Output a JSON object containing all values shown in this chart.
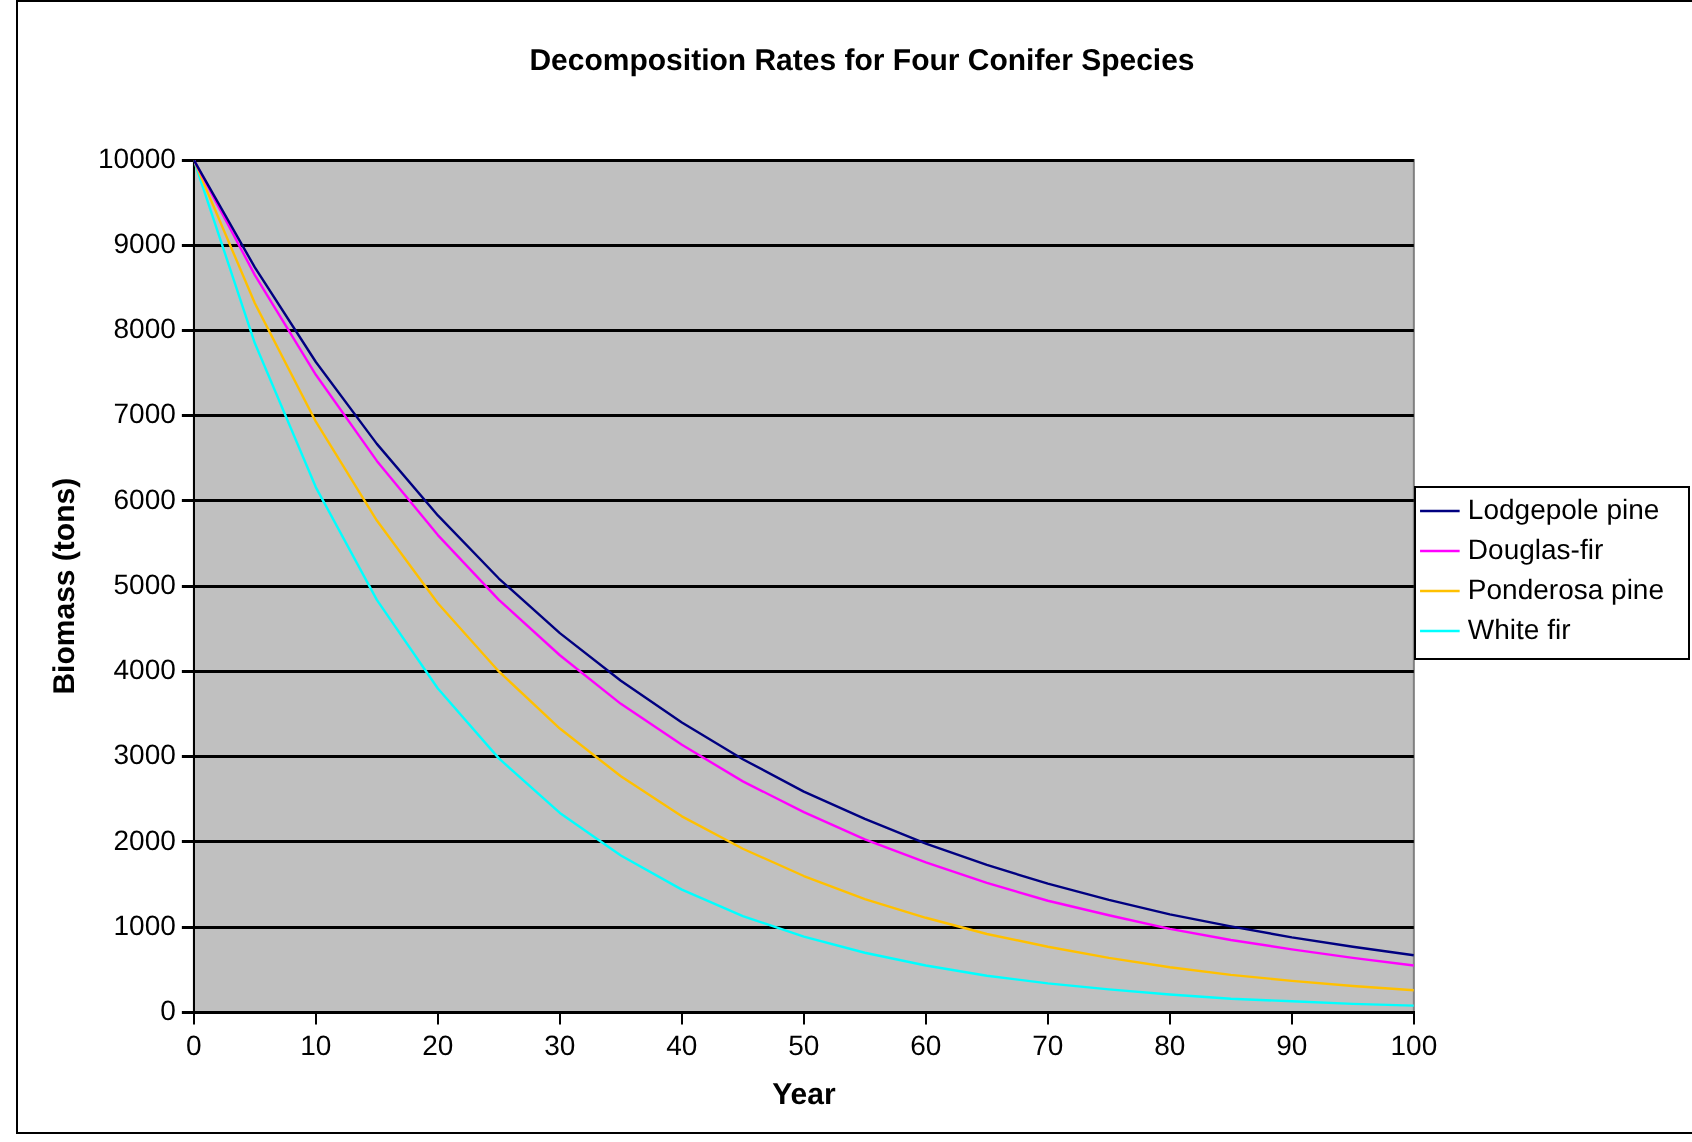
{
  "chart_data": {
    "type": "line",
    "title": "Decomposition Rates for Four Conifer Species",
    "xlabel": "Year",
    "ylabel": "Biomass (tons)",
    "x": [
      0,
      5,
      10,
      15,
      20,
      25,
      30,
      35,
      40,
      45,
      50,
      55,
      60,
      65,
      70,
      75,
      80,
      85,
      90,
      95,
      100
    ],
    "series": [
      {
        "name": "Lodgepole pine",
        "color": "#000080",
        "values": [
          10000,
          8740,
          7630,
          6670,
          5830,
          5090,
          4450,
          3890,
          3400,
          2970,
          2590,
          2270,
          1980,
          1730,
          1510,
          1320,
          1150,
          1010,
          880,
          770,
          670
        ]
      },
      {
        "name": "Douglas-fir",
        "color": "#ff00ff",
        "values": [
          10000,
          8650,
          7480,
          6470,
          5600,
          4840,
          4190,
          3620,
          3140,
          2710,
          2350,
          2030,
          1760,
          1520,
          1310,
          1140,
          980,
          850,
          740,
          640,
          550
        ]
      },
      {
        "name": "Ponderosa pine",
        "color": "#ffc000",
        "values": [
          10000,
          8320,
          6930,
          5770,
          4800,
          4000,
          3330,
          2770,
          2300,
          1920,
          1600,
          1330,
          1110,
          920,
          770,
          640,
          530,
          440,
          370,
          310,
          260
        ]
      },
      {
        "name": "White fir",
        "color": "#00ffff",
        "values": [
          10000,
          7850,
          6160,
          4840,
          3800,
          2980,
          2340,
          1840,
          1440,
          1130,
          890,
          700,
          550,
          430,
          340,
          270,
          210,
          160,
          130,
          100,
          80
        ]
      }
    ],
    "xlim": [
      0,
      100
    ],
    "xticks": [
      0,
      10,
      20,
      30,
      40,
      50,
      60,
      70,
      80,
      90,
      100
    ],
    "ylim": [
      0,
      10000
    ],
    "yticks": [
      0,
      1000,
      2000,
      3000,
      4000,
      5000,
      6000,
      7000,
      8000,
      9000,
      10000
    ],
    "grid": "y",
    "legend": "right",
    "marker": "none",
    "line_style": "solid"
  }
}
